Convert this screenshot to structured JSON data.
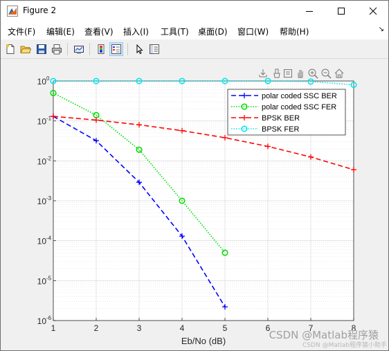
{
  "window": {
    "title": "Figure 2",
    "icon": "matlab-figure-icon"
  },
  "menu": {
    "items": [
      {
        "label": "文件(F)"
      },
      {
        "label": "编辑(E)"
      },
      {
        "label": "查看(V)"
      },
      {
        "label": "插入(I)"
      },
      {
        "label": "工具(T)"
      },
      {
        "label": "桌面(D)"
      },
      {
        "label": "窗口(W)"
      },
      {
        "label": "帮助(H)"
      }
    ],
    "overflow": "↘"
  },
  "toolbar": {
    "icons": [
      "new-figure-icon",
      "open-file-icon",
      "save-icon",
      "print-icon",
      "link-plot-icon",
      "colorbar-icon",
      "legend-icon",
      "pointer-icon",
      "property-inspector-icon"
    ]
  },
  "axes_toolbar": {
    "icons": [
      "export-icon",
      "brush-icon",
      "data-tips-icon",
      "pan-icon",
      "zoom-in-icon",
      "zoom-out-icon",
      "home-icon"
    ]
  },
  "chart_data": {
    "type": "line",
    "xlabel": "Eb/No (dB)",
    "ylabel": "",
    "xlim": [
      1,
      8
    ],
    "ylim": [
      1e-06,
      1
    ],
    "yscale": "log",
    "grid": true,
    "minor_grid": true,
    "legend_position": "top-right",
    "xticks": [
      "1",
      "2",
      "3",
      "4",
      "5",
      "6",
      "7",
      "8"
    ],
    "yticks": [
      {
        "base": "10",
        "exp": "0"
      },
      {
        "base": "10",
        "exp": "-1"
      },
      {
        "base": "10",
        "exp": "-2"
      },
      {
        "base": "10",
        "exp": "-3"
      },
      {
        "base": "10",
        "exp": "-4"
      },
      {
        "base": "10",
        "exp": "-5"
      },
      {
        "base": "10",
        "exp": "-6"
      }
    ],
    "series": [
      {
        "name": "polar coded SSC BER",
        "color": "#0000ff",
        "dash": "dashed",
        "marker": "plus",
        "x": [
          1,
          2,
          3,
          4,
          5
        ],
        "y": [
          0.13,
          0.032,
          0.0029,
          0.00013,
          2.2e-06
        ]
      },
      {
        "name": "polar coded SSC FER",
        "color": "#00dd00",
        "dash": "dotted",
        "marker": "circle",
        "x": [
          1,
          2,
          3,
          4,
          5
        ],
        "y": [
          0.5,
          0.14,
          0.019,
          0.001,
          5e-05
        ]
      },
      {
        "name": "BPSK BER",
        "color": "#ff0000",
        "dash": "dashed",
        "marker": "plus",
        "x": [
          1,
          2,
          3,
          4,
          5,
          6,
          7,
          8
        ],
        "y": [
          0.13,
          0.105,
          0.08,
          0.057,
          0.038,
          0.023,
          0.0125,
          0.006
        ]
      },
      {
        "name": "BPSK FER",
        "color": "#00e5ee",
        "dash": "dotted",
        "marker": "circle",
        "x": [
          1,
          2,
          3,
          4,
          5,
          6,
          7,
          8
        ],
        "y": [
          1,
          1,
          1,
          1,
          1,
          1,
          0.97,
          0.8
        ]
      }
    ]
  },
  "watermark": {
    "text": "CSDN @Matlab程序猿",
    "small": "CSDN @Matlab程序猿小助手"
  }
}
